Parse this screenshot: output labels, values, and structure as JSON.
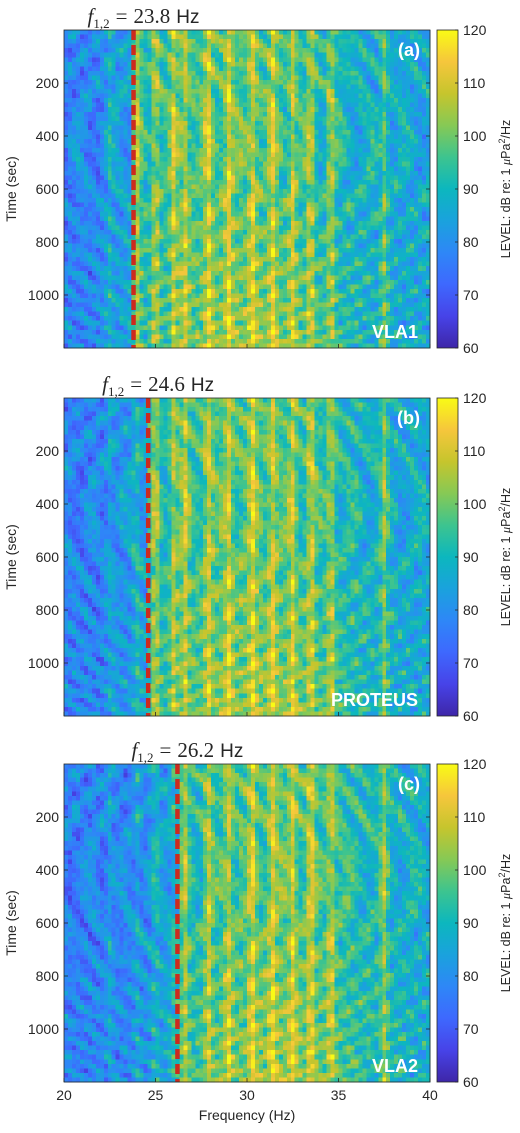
{
  "colors": {
    "colormap": [
      "#3e26a8",
      "#4743e8",
      "#3e68fe",
      "#2e87f7",
      "#1aa2dd",
      "#0cb7be",
      "#3dc48f",
      "#86c955",
      "#c6c52d",
      "#f6c63c",
      "#f9fb15"
    ],
    "marker": "#cc2a1e",
    "axis": "#262626",
    "panel_tag": "#ffffff"
  },
  "chart_data": [
    {
      "type": "heatmap",
      "panel_label": "(a)",
      "array_label": "VLA1",
      "marker_equation": {
        "symbol": "f",
        "subscript": "1,2",
        "equals": "=",
        "value": "23.8",
        "unit": "Hz"
      },
      "marker_frequency": 23.8,
      "xlim": [
        20,
        40
      ],
      "ylim": [
        0,
        1200
      ],
      "y_reversed": true,
      "ylabel": "Time (sec)",
      "xlabel": "",
      "yticks": [
        200,
        400,
        600,
        800,
        1000
      ],
      "xticks": [],
      "colorbar": {
        "label": "LEVEL: dB re: 1 μPa²/Hz",
        "label_prefix": "LEVEL: dB re: 1 ",
        "label_mu": "μ",
        "label_unit": "Pa",
        "label_sup": "2",
        "label_suffix": "/Hz",
        "ticks": [
          60,
          70,
          80,
          90,
          100,
          110,
          120
        ],
        "range": [
          60,
          120
        ]
      }
    },
    {
      "type": "heatmap",
      "panel_label": "(b)",
      "array_label": "PROTEUS",
      "marker_equation": {
        "symbol": "f",
        "subscript": "1,2",
        "equals": "=",
        "value": "24.6",
        "unit": "Hz"
      },
      "marker_frequency": 24.6,
      "xlim": [
        20,
        40
      ],
      "ylim": [
        0,
        1200
      ],
      "y_reversed": true,
      "ylabel": "Time (sec)",
      "xlabel": "",
      "yticks": [
        200,
        400,
        600,
        800,
        1000
      ],
      "xticks": [],
      "colorbar": {
        "label": "LEVEL: dB re: 1 μPa²/Hz",
        "label_prefix": "LEVEL: dB re: 1 ",
        "label_mu": "μ",
        "label_unit": "Pa",
        "label_sup": "2",
        "label_suffix": "/Hz",
        "ticks": [
          60,
          70,
          80,
          90,
          100,
          110,
          120
        ],
        "range": [
          60,
          120
        ]
      }
    },
    {
      "type": "heatmap",
      "panel_label": "(c)",
      "array_label": "VLA2",
      "marker_equation": {
        "symbol": "f",
        "subscript": "1,2",
        "equals": "=",
        "value": "26.2",
        "unit": "Hz"
      },
      "marker_frequency": 26.2,
      "xlim": [
        20,
        40
      ],
      "ylim": [
        0,
        1200
      ],
      "y_reversed": true,
      "ylabel": "Time (sec)",
      "xlabel": "Frequency (Hz)",
      "yticks": [
        200,
        400,
        600,
        800,
        1000
      ],
      "xticks": [
        20,
        25,
        30,
        35,
        40
      ],
      "colorbar": {
        "label": "LEVEL: dB re: 1 μPa²/Hz",
        "label_prefix": "LEVEL: dB re: 1 ",
        "label_mu": "μ",
        "label_unit": "Pa",
        "label_sup": "2",
        "label_suffix": "/Hz",
        "ticks": [
          60,
          70,
          80,
          90,
          100,
          110,
          120
        ],
        "range": [
          60,
          120
        ]
      }
    }
  ]
}
